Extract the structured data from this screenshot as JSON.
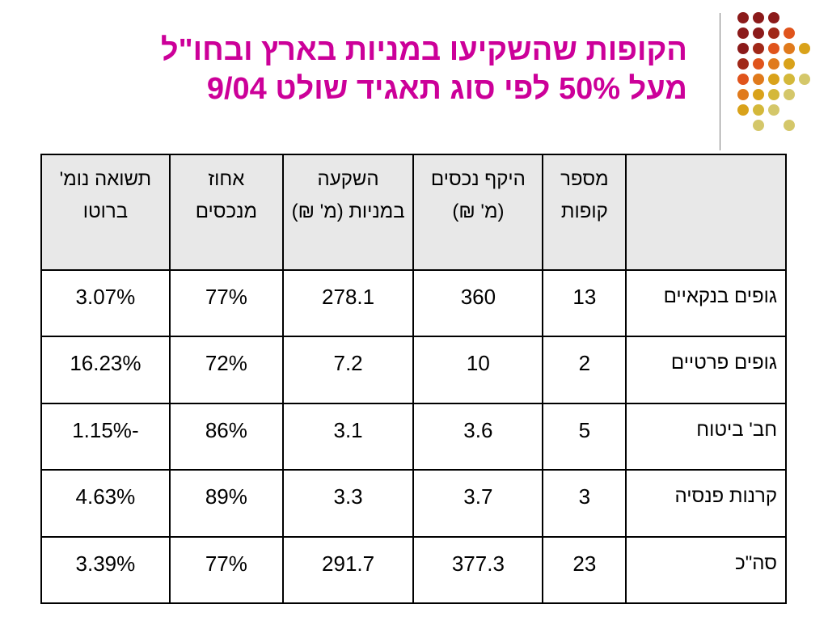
{
  "slide": {
    "title_line1": "הקופות שהשקיעו במניות בארץ ובחו\"ל",
    "title_line2": "מעל 50% לפי סוג תאגיד שולט 9/04"
  },
  "colors": {
    "title": "#cc0099",
    "dot_dark_red": "#8b1a1a",
    "dot_orange": "#e0541c",
    "dot_gold": "#d9a21a",
    "dot_khaki": "#d4c76a"
  },
  "table": {
    "headers": [
      "",
      "מספר קופות",
      "היקף נכסים (מ' ₪)",
      "השקעה במניות (מ' ₪)",
      "אחוז מנכסים",
      "תשואה נומ' ברוטו"
    ],
    "rows": [
      [
        "גופים בנקאיים",
        "13",
        "360",
        "278.1",
        "77%",
        "3.07%"
      ],
      [
        "גופים פרטיים",
        "2",
        "10",
        "7.2",
        "72%",
        "16.23%"
      ],
      [
        "חב' ביטוח",
        "5",
        "3.6",
        "3.1",
        "86%",
        "-1.15%"
      ],
      [
        "קרנות פנסיה",
        "3",
        "3.7",
        "3.3",
        "89%",
        "4.63%"
      ],
      [
        "סה\"כ",
        "23",
        "377.3",
        "291.7",
        "77%",
        "3.39%"
      ]
    ]
  }
}
